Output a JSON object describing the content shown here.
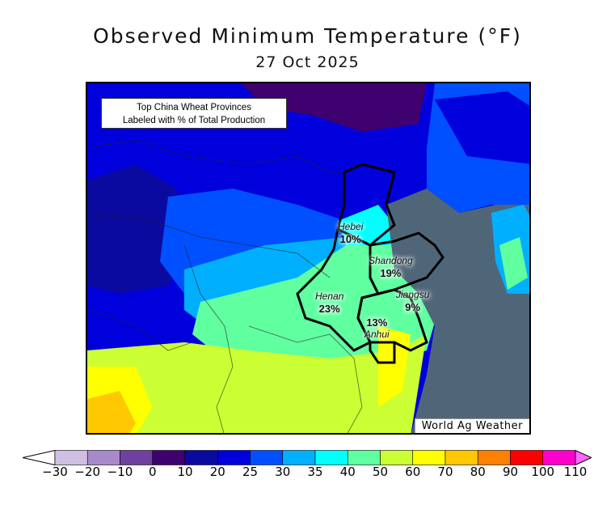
{
  "title": "Observed Minimum Temperature (°F)",
  "date": "27 Oct 2025",
  "note": {
    "line1": "Top China Wheat Provinces",
    "line2": "Labeled with % of Total Production"
  },
  "credit": "World Ag Weather",
  "provinces": [
    {
      "name": "Hebei",
      "pct": "10%"
    },
    {
      "name": "Shandong",
      "pct": "19%"
    },
    {
      "name": "Henan",
      "pct": "23%"
    },
    {
      "name": "Jiangsu",
      "pct": "9%"
    },
    {
      "name": "Anhui",
      "pct": "13%"
    }
  ],
  "colorbar": {
    "ticks": [
      "−30",
      "−20",
      "−10",
      "0",
      "10",
      "20",
      "25",
      "30",
      "35",
      "40",
      "50",
      "60",
      "70",
      "80",
      "90",
      "100",
      "110"
    ],
    "colors": [
      "#cfc0e2",
      "#a98ac8",
      "#6f40a0",
      "#3f0070",
      "#0a0aa0",
      "#0000dd",
      "#0050ff",
      "#00b0ff",
      "#00ffff",
      "#60ffa0",
      "#ccff33",
      "#ffff00",
      "#ffc800",
      "#ff8000",
      "#ff0000",
      "#ff00cc"
    ],
    "low_color": "#ffffff",
    "high_color": "#ff66ff"
  }
}
